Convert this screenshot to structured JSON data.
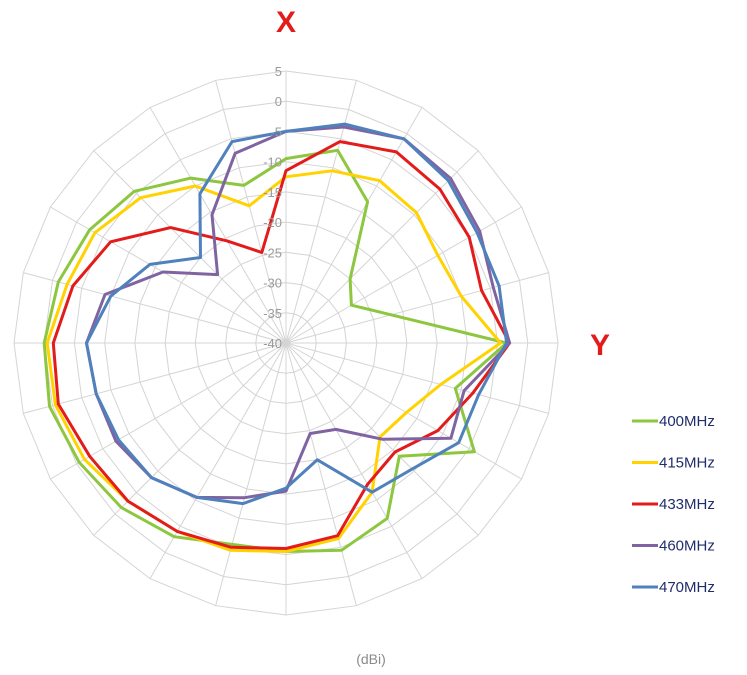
{
  "chart_data": {
    "type": "radar",
    "title": "",
    "x_direction_label": "X",
    "y_direction_label": "Y",
    "unit_label": "(dBi)",
    "radial_ticks": [
      5,
      0,
      -5,
      -10,
      -15,
      -20,
      -25,
      -30,
      -35,
      -40
    ],
    "rmin": -40,
    "rmax": 5,
    "num_spokes": 24,
    "grid": true,
    "legend_position": "right",
    "series": [
      {
        "name": "400MHz",
        "color": "#8dc63f",
        "values": [
          -9.5,
          -7.0,
          -13.0,
          -25.0,
          -27.5,
          -22.0,
          -3.5,
          -11.0,
          -4.0,
          -13.5,
          -6.5,
          -4.5,
          -5.5,
          -5.5,
          -3.0,
          -1.5,
          -0.5,
          0.5,
          0.0,
          -1.0,
          -2.5,
          -4.5,
          -8.5,
          -13.0
        ]
      },
      {
        "name": "415MHz",
        "color": "#ffd200",
        "values": [
          -12.5,
          -10.5,
          -9.0,
          -9.5,
          -11.0,
          -10.0,
          -4.5,
          -13.5,
          -17.0,
          -18.0,
          -11.5,
          -6.5,
          -5.5,
          -4.5,
          -4.0,
          -3.0,
          -1.5,
          -0.5,
          -0.5,
          -2.5,
          -3.5,
          -6.0,
          -10.0,
          -16.5
        ]
      },
      {
        "name": "433MHz",
        "color": "#e31b1b",
        "values": [
          -11.5,
          -5.5,
          -3.5,
          -4.0,
          -5.0,
          -6.5,
          -3.0,
          -8.0,
          -11.0,
          -14.5,
          -13.0,
          -7.0,
          -6.0,
          -5.0,
          -4.0,
          -3.0,
          -2.5,
          -1.0,
          -1.5,
          -3.5,
          -6.5,
          -13.0,
          -20.5,
          -24.5
        ]
      },
      {
        "name": "460MHz",
        "color": "#8064a2",
        "values": [
          -5.0,
          -3.0,
          -1.0,
          -1.5,
          -3.0,
          -4.5,
          -3.0,
          -9.5,
          -8.5,
          -17.5,
          -23.5,
          -24.5,
          -15.5,
          -13.5,
          -10.5,
          -8.5,
          -7.5,
          -7.5,
          -7.0,
          -9.0,
          -16.5,
          -24.0,
          -15.5,
          -7.5
        ]
      },
      {
        "name": "470MHz",
        "color": "#4f81bd",
        "values": [
          -5.0,
          -2.5,
          -1.0,
          -2.0,
          -3.5,
          -3.5,
          -3.5,
          -7.0,
          -7.0,
          -10.5,
          -11.5,
          -20.0,
          -16.0,
          -12.5,
          -10.5,
          -8.5,
          -8.0,
          -7.5,
          -7.0,
          -10.0,
          -14.0,
          -20.0,
          -11.5,
          -5.5
        ]
      }
    ]
  }
}
